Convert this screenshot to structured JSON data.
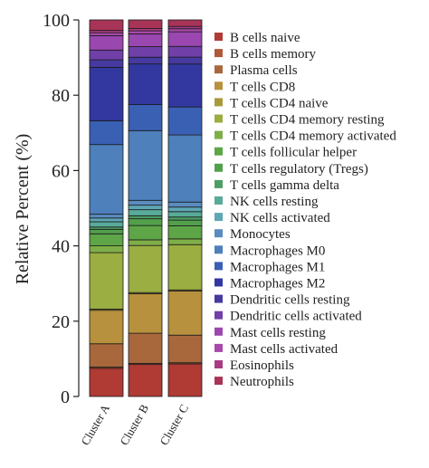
{
  "chart_data": {
    "type": "bar",
    "stacked": true,
    "ylabel": "Relative Percent (%)",
    "ylim": [
      0,
      100
    ],
    "yticks": [
      0,
      20,
      40,
      60,
      80,
      100
    ],
    "categories": [
      "Cluster A",
      "Cluster B",
      "Cluster C"
    ],
    "legend_position": "right",
    "series": [
      {
        "name": "B cells naive",
        "color": "#b03a34",
        "values": [
          7.5,
          8.5,
          8.5
        ]
      },
      {
        "name": "B cells memory",
        "color": "#b05a3a",
        "values": [
          0.3,
          0.3,
          0.3
        ]
      },
      {
        "name": "Plasma cells",
        "color": "#a8683c",
        "values": [
          6.2,
          8.0,
          7.2
        ]
      },
      {
        "name": "T cells CD8",
        "color": "#b8913e",
        "values": [
          8.9,
          10.5,
          11.5
        ]
      },
      {
        "name": "T cells CD4 naive",
        "color": "#a89a3c",
        "values": [
          0.3,
          0.3,
          0.3
        ]
      },
      {
        "name": "T cells CD4 memory resting",
        "color": "#9aae42",
        "values": [
          15.0,
          12.5,
          11.8
        ]
      },
      {
        "name": "T cells CD4 memory activated",
        "color": "#7fae48",
        "values": [
          1.8,
          1.5,
          1.5
        ]
      },
      {
        "name": "T cells follicular helper",
        "color": "#5ea548",
        "values": [
          3.2,
          3.8,
          3.4
        ]
      },
      {
        "name": "T cells regulatory (Tregs)",
        "color": "#52a04c",
        "values": [
          1.2,
          1.8,
          1.5
        ]
      },
      {
        "name": "T cells gamma delta",
        "color": "#4e9e64",
        "values": [
          0.6,
          0.8,
          0.8
        ]
      },
      {
        "name": "NK cells resting",
        "color": "#58ab98",
        "values": [
          1.4,
          1.6,
          1.4
        ]
      },
      {
        "name": "NK cells activated",
        "color": "#5ea7b4",
        "values": [
          1.0,
          1.2,
          1.2
        ]
      },
      {
        "name": "Monocytes",
        "color": "#5a8cc0",
        "values": [
          1.0,
          1.3,
          1.3
        ]
      },
      {
        "name": "Macrophages M0",
        "color": "#4e80bc",
        "values": [
          18.5,
          18.5,
          17.5
        ]
      },
      {
        "name": "Macrophages M1",
        "color": "#3a60b4",
        "values": [
          6.3,
          6.9,
          7.3
        ]
      },
      {
        "name": "Macrophages M2",
        "color": "#3238a0",
        "values": [
          14.2,
          10.8,
          11.2
        ]
      },
      {
        "name": "Dendritic cells resting",
        "color": "#463aa0",
        "values": [
          2.0,
          1.8,
          1.8
        ]
      },
      {
        "name": "Dendritic cells activated",
        "color": "#7040a8",
        "values": [
          2.6,
          2.8,
          2.8
        ]
      },
      {
        "name": "Mast cells resting",
        "color": "#9a48b0",
        "values": [
          3.8,
          3.4,
          3.8
        ]
      },
      {
        "name": "Mast cells activated",
        "color": "#a848a8",
        "values": [
          0.8,
          0.8,
          0.8
        ]
      },
      {
        "name": "Eosinophils",
        "color": "#a83c84",
        "values": [
          0.6,
          0.6,
          0.6
        ]
      },
      {
        "name": "Neutrophils",
        "color": "#a83458",
        "values": [
          2.8,
          2.3,
          1.7
        ]
      }
    ]
  }
}
